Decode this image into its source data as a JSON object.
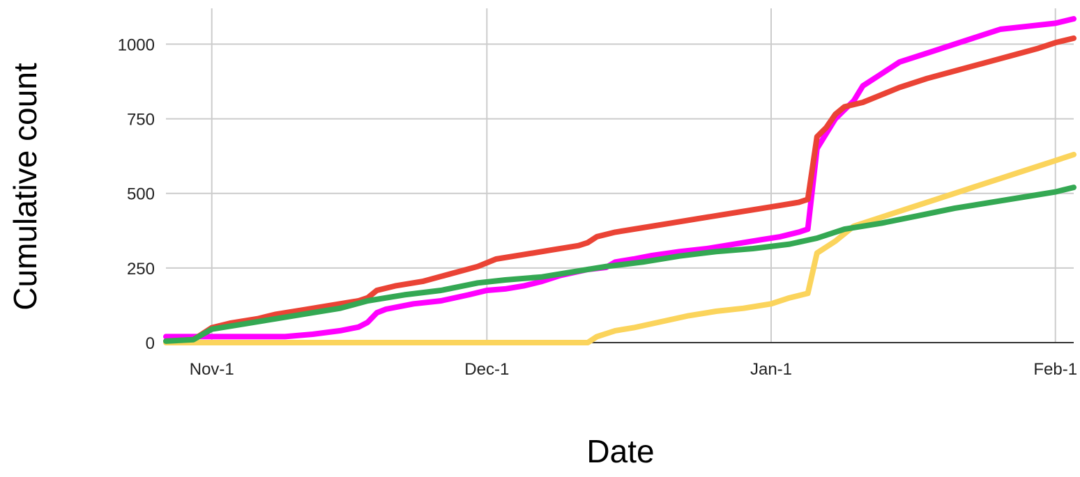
{
  "chart_data": {
    "type": "line",
    "title": "",
    "xlabel": "Date",
    "ylabel": "Cumulative count",
    "x_ticks": [
      "Nov-1",
      "Dec-1",
      "Jan-1",
      "Feb-1"
    ],
    "x_tick_dates": [
      "2023-11-01",
      "2023-12-01",
      "2024-01-01",
      "2024-02-01"
    ],
    "xlim": [
      "2023-10-27",
      "2024-02-03"
    ],
    "y_ticks": [
      0,
      250,
      500,
      750,
      1000
    ],
    "ylim": [
      0,
      1120
    ],
    "grid": true,
    "legend": "none",
    "series": [
      {
        "color": "#ff00ff",
        "points": [
          [
            "2023-10-27",
            20
          ],
          [
            "2023-11-02",
            20
          ],
          [
            "2023-11-06",
            20
          ],
          [
            "2023-11-09",
            20
          ],
          [
            "2023-11-12",
            28
          ],
          [
            "2023-11-15",
            40
          ],
          [
            "2023-11-17",
            52
          ],
          [
            "2023-11-18",
            68
          ],
          [
            "2023-11-19",
            100
          ],
          [
            "2023-11-20",
            112
          ],
          [
            "2023-11-23",
            130
          ],
          [
            "2023-11-26",
            140
          ],
          [
            "2023-11-29",
            160
          ],
          [
            "2023-12-01",
            175
          ],
          [
            "2023-12-03",
            180
          ],
          [
            "2023-12-05",
            190
          ],
          [
            "2023-12-07",
            205
          ],
          [
            "2023-12-09",
            225
          ],
          [
            "2023-12-12",
            245
          ],
          [
            "2023-12-14",
            252
          ],
          [
            "2023-12-15",
            270
          ],
          [
            "2023-12-17",
            280
          ],
          [
            "2023-12-19",
            292
          ],
          [
            "2023-12-22",
            305
          ],
          [
            "2023-12-25",
            315
          ],
          [
            "2023-12-28",
            330
          ],
          [
            "2023-12-31",
            345
          ],
          [
            "2024-01-02",
            355
          ],
          [
            "2024-01-04",
            370
          ],
          [
            "2024-01-05",
            380
          ],
          [
            "2024-01-06",
            650
          ],
          [
            "2024-01-07",
            700
          ],
          [
            "2024-01-08",
            750
          ],
          [
            "2024-01-09",
            780
          ],
          [
            "2024-01-10",
            810
          ],
          [
            "2024-01-11",
            860
          ],
          [
            "2024-01-13",
            900
          ],
          [
            "2024-01-15",
            940
          ],
          [
            "2024-01-18",
            970
          ],
          [
            "2024-01-21",
            1000
          ],
          [
            "2024-01-24",
            1030
          ],
          [
            "2024-01-26",
            1050
          ],
          [
            "2024-01-29",
            1060
          ],
          [
            "2024-02-01",
            1070
          ],
          [
            "2024-02-03",
            1085
          ]
        ]
      },
      {
        "color": "#ea4335",
        "points": [
          [
            "2023-10-27",
            5
          ],
          [
            "2023-10-30",
            10
          ],
          [
            "2023-11-01",
            50
          ],
          [
            "2023-11-03",
            65
          ],
          [
            "2023-11-06",
            80
          ],
          [
            "2023-11-08",
            95
          ],
          [
            "2023-11-11",
            110
          ],
          [
            "2023-11-14",
            125
          ],
          [
            "2023-11-17",
            140
          ],
          [
            "2023-11-18",
            150
          ],
          [
            "2023-11-19",
            175
          ],
          [
            "2023-11-21",
            190
          ],
          [
            "2023-11-24",
            205
          ],
          [
            "2023-11-27",
            230
          ],
          [
            "2023-11-30",
            255
          ],
          [
            "2023-12-02",
            280
          ],
          [
            "2023-12-05",
            295
          ],
          [
            "2023-12-08",
            310
          ],
          [
            "2023-12-11",
            325
          ],
          [
            "2023-12-12",
            335
          ],
          [
            "2023-12-13",
            355
          ],
          [
            "2023-12-15",
            370
          ],
          [
            "2023-12-18",
            385
          ],
          [
            "2023-12-21",
            400
          ],
          [
            "2023-12-24",
            415
          ],
          [
            "2023-12-27",
            430
          ],
          [
            "2023-12-30",
            445
          ],
          [
            "2024-01-02",
            460
          ],
          [
            "2024-01-04",
            470
          ],
          [
            "2024-01-05",
            480
          ],
          [
            "2024-01-06",
            690
          ],
          [
            "2024-01-07",
            720
          ],
          [
            "2024-01-08",
            765
          ],
          [
            "2024-01-09",
            790
          ],
          [
            "2024-01-11",
            805
          ],
          [
            "2024-01-13",
            830
          ],
          [
            "2024-01-15",
            855
          ],
          [
            "2024-01-18",
            885
          ],
          [
            "2024-01-21",
            910
          ],
          [
            "2024-01-24",
            935
          ],
          [
            "2024-01-27",
            960
          ],
          [
            "2024-01-30",
            985
          ],
          [
            "2024-02-01",
            1005
          ],
          [
            "2024-02-03",
            1020
          ]
        ]
      },
      {
        "color": "#fbd45c",
        "points": [
          [
            "2023-10-27",
            0
          ],
          [
            "2023-12-12",
            0
          ],
          [
            "2023-12-13",
            20
          ],
          [
            "2023-12-15",
            40
          ],
          [
            "2023-12-17",
            50
          ],
          [
            "2023-12-20",
            70
          ],
          [
            "2023-12-23",
            90
          ],
          [
            "2023-12-26",
            105
          ],
          [
            "2023-12-29",
            115
          ],
          [
            "2024-01-01",
            130
          ],
          [
            "2024-01-03",
            150
          ],
          [
            "2024-01-05",
            165
          ],
          [
            "2024-01-06",
            300
          ],
          [
            "2024-01-08",
            340
          ],
          [
            "2024-01-10",
            390
          ],
          [
            "2024-01-13",
            420
          ],
          [
            "2024-01-16",
            450
          ],
          [
            "2024-01-19",
            480
          ],
          [
            "2024-01-22",
            510
          ],
          [
            "2024-01-25",
            540
          ],
          [
            "2024-01-28",
            570
          ],
          [
            "2024-01-31",
            600
          ],
          [
            "2024-02-03",
            630
          ]
        ]
      },
      {
        "color": "#34a853",
        "points": [
          [
            "2023-10-27",
            5
          ],
          [
            "2023-10-30",
            10
          ],
          [
            "2023-11-01",
            45
          ],
          [
            "2023-11-04",
            60
          ],
          [
            "2023-11-08",
            80
          ],
          [
            "2023-11-12",
            100
          ],
          [
            "2023-11-15",
            115
          ],
          [
            "2023-11-18",
            140
          ],
          [
            "2023-11-22",
            160
          ],
          [
            "2023-11-26",
            175
          ],
          [
            "2023-11-30",
            200
          ],
          [
            "2023-12-03",
            210
          ],
          [
            "2023-12-07",
            220
          ],
          [
            "2023-12-11",
            240
          ],
          [
            "2023-12-14",
            255
          ],
          [
            "2023-12-18",
            270
          ],
          [
            "2023-12-22",
            290
          ],
          [
            "2023-12-26",
            305
          ],
          [
            "2023-12-30",
            315
          ],
          [
            "2024-01-03",
            330
          ],
          [
            "2024-01-06",
            350
          ],
          [
            "2024-01-09",
            380
          ],
          [
            "2024-01-13",
            400
          ],
          [
            "2024-01-17",
            425
          ],
          [
            "2024-01-21",
            450
          ],
          [
            "2024-01-25",
            470
          ],
          [
            "2024-01-29",
            490
          ],
          [
            "2024-02-01",
            505
          ],
          [
            "2024-02-03",
            520
          ]
        ]
      }
    ]
  }
}
